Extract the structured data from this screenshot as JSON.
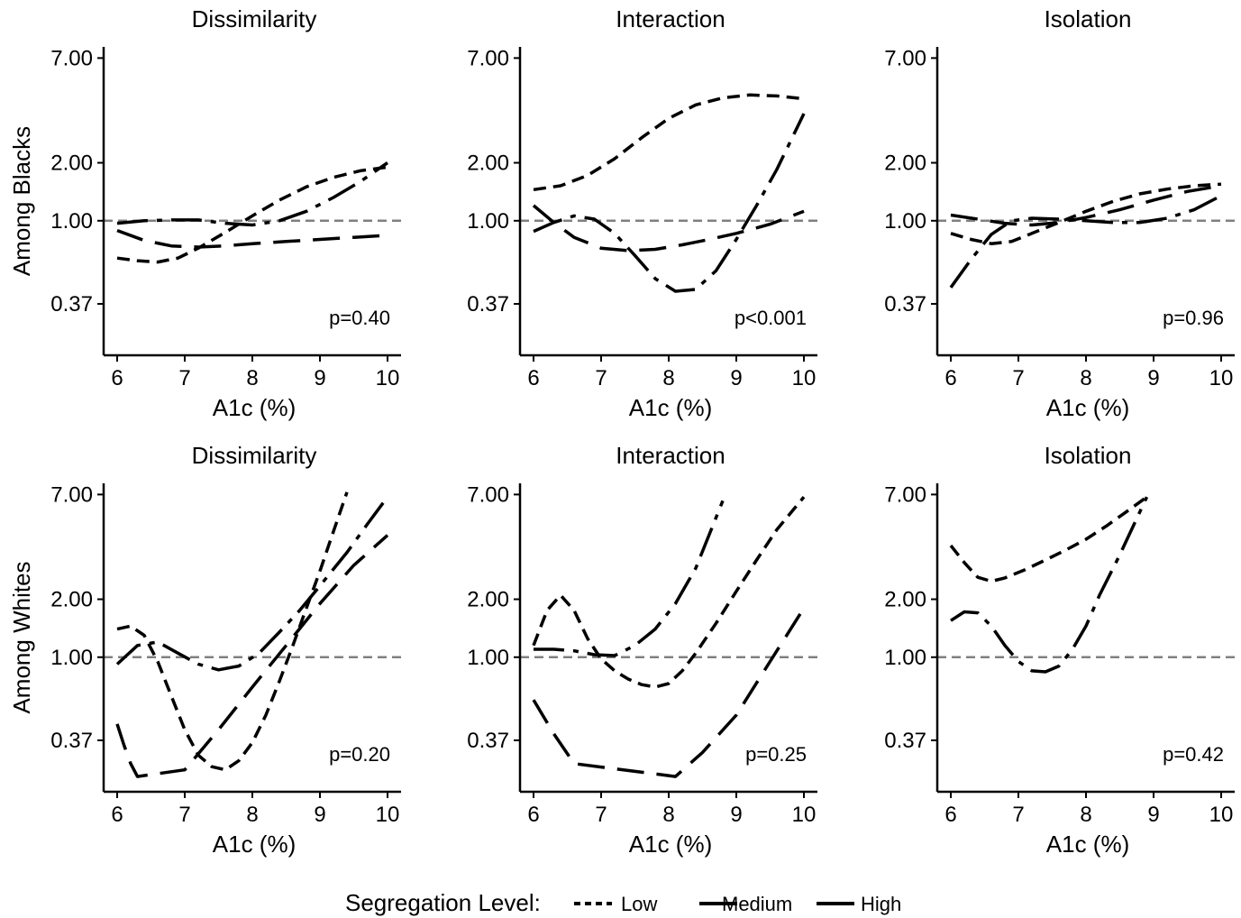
{
  "chart_data": {
    "type": "line",
    "legend": {
      "title": "Segregation Level:",
      "position": "bottom",
      "entries": [
        {
          "name": "Low",
          "dash": "short-dash"
        },
        {
          "name": "Medium",
          "dash": "long-dash"
        },
        {
          "name": "High",
          "dash": "dot-dash"
        }
      ]
    },
    "row_labels": [
      "Among Blacks",
      "Among Whites"
    ],
    "reference_line": {
      "y": 1.0,
      "style": "dashed",
      "color": "#808080"
    },
    "panels": [
      {
        "title": "Dissimilarity",
        "row": 0,
        "col": 0,
        "xlabel": "A1c (%)",
        "ylabel": "Among Blacks",
        "pvalue": "p=0.40",
        "x_ticks": [
          "6",
          "7",
          "8",
          "9",
          "10"
        ],
        "y_ticks": [
          "0.37",
          "1.00",
          "2.00",
          "7.00"
        ],
        "xlim": [
          5.8,
          10.2
        ],
        "ylim": [
          0.2,
          8.0
        ],
        "y_scale": "log",
        "series": [
          {
            "name": "Low",
            "x": [
              6.0,
              6.3,
              6.6,
              6.9,
              7.2,
              7.6,
              8.0,
              8.4,
              8.8,
              9.2,
              9.6,
              10.0
            ],
            "y": [
              0.64,
              0.62,
              0.61,
              0.64,
              0.72,
              0.87,
              1.06,
              1.28,
              1.5,
              1.68,
              1.82,
              1.9
            ]
          },
          {
            "name": "Medium",
            "x": [
              6.0,
              6.4,
              6.8,
              7.2,
              7.6,
              8.0,
              8.5,
              9.0,
              9.5,
              10.0
            ],
            "y": [
              0.89,
              0.79,
              0.74,
              0.73,
              0.74,
              0.76,
              0.78,
              0.8,
              0.82,
              0.84
            ]
          },
          {
            "name": "High",
            "x": [
              6.0,
              6.4,
              6.8,
              7.2,
              7.6,
              8.0,
              8.4,
              8.8,
              9.2,
              9.6,
              10.0
            ],
            "y": [
              0.97,
              1.0,
              1.01,
              1.01,
              0.97,
              0.95,
              1.0,
              1.12,
              1.32,
              1.6,
              2.0
            ]
          }
        ]
      },
      {
        "title": "Interaction",
        "row": 0,
        "col": 1,
        "xlabel": "A1c (%)",
        "ylabel": "",
        "pvalue": "p<0.001",
        "x_ticks": [
          "6",
          "7",
          "8",
          "9",
          "10"
        ],
        "y_ticks": [
          "0.37",
          "1.00",
          "2.00",
          "7.00"
        ],
        "xlim": [
          5.8,
          10.2
        ],
        "ylim": [
          0.2,
          8.0
        ],
        "y_scale": "log",
        "series": [
          {
            "name": "Low",
            "x": [
              6.0,
              6.4,
              6.8,
              7.2,
              7.6,
              8.0,
              8.4,
              8.8,
              9.2,
              9.6,
              10.0
            ],
            "y": [
              1.45,
              1.52,
              1.72,
              2.1,
              2.7,
              3.4,
              4.0,
              4.35,
              4.5,
              4.45,
              4.3
            ]
          },
          {
            "name": "Medium",
            "x": [
              6.0,
              6.3,
              6.6,
              7.0,
              7.4,
              7.8,
              8.2,
              8.6,
              9.0,
              9.5,
              10.0
            ],
            "y": [
              1.2,
              0.98,
              0.82,
              0.72,
              0.7,
              0.71,
              0.75,
              0.8,
              0.86,
              0.96,
              1.12
            ]
          },
          {
            "name": "High",
            "x": [
              6.0,
              6.3,
              6.6,
              6.9,
              7.2,
              7.5,
              7.8,
              8.1,
              8.4,
              8.7,
              9.0,
              9.3,
              9.6,
              10.0
            ],
            "y": [
              0.88,
              0.98,
              1.06,
              1.02,
              0.86,
              0.66,
              0.5,
              0.43,
              0.44,
              0.55,
              0.8,
              1.2,
              1.85,
              3.6
            ]
          }
        ]
      },
      {
        "title": "Isolation",
        "row": 0,
        "col": 2,
        "xlabel": "A1c (%)",
        "ylabel": "",
        "pvalue": "p=0.96",
        "x_ticks": [
          "6",
          "7",
          "8",
          "9",
          "10"
        ],
        "y_ticks": [
          "0.37",
          "1.00",
          "2.00",
          "7.00"
        ],
        "xlim": [
          5.8,
          10.2
        ],
        "ylim": [
          0.2,
          8.0
        ],
        "y_scale": "log",
        "series": [
          {
            "name": "Low",
            "x": [
              6.0,
              6.3,
              6.6,
              6.9,
              7.2,
              7.6,
              8.0,
              8.4,
              8.8,
              9.2,
              9.6,
              10.0
            ],
            "y": [
              0.86,
              0.8,
              0.76,
              0.78,
              0.86,
              0.98,
              1.12,
              1.26,
              1.38,
              1.46,
              1.52,
              1.55
            ]
          },
          {
            "name": "Medium",
            "x": [
              6.0,
              6.4,
              6.8,
              7.2,
              7.6,
              8.0,
              8.5,
              9.0,
              9.5,
              10.0
            ],
            "y": [
              1.07,
              1.02,
              0.97,
              0.95,
              0.98,
              1.04,
              1.14,
              1.28,
              1.42,
              1.52
            ]
          },
          {
            "name": "High",
            "x": [
              6.0,
              6.3,
              6.6,
              6.9,
              7.2,
              7.6,
              8.0,
              8.4,
              8.8,
              9.2,
              9.6,
              10.0
            ],
            "y": [
              0.45,
              0.63,
              0.85,
              1.0,
              1.03,
              1.02,
              1.0,
              0.98,
              0.98,
              1.03,
              1.14,
              1.35
            ]
          }
        ]
      },
      {
        "title": "Dissimilarity",
        "row": 1,
        "col": 0,
        "xlabel": "A1c (%)",
        "ylabel": "Among Whites",
        "pvalue": "p=0.20",
        "x_ticks": [
          "6",
          "7",
          "8",
          "9",
          "10"
        ],
        "y_ticks": [
          "0.37",
          "1.00",
          "2.00",
          "7.00"
        ],
        "xlim": [
          5.8,
          10.2
        ],
        "ylim": [
          0.2,
          8.0
        ],
        "y_scale": "log",
        "series": [
          {
            "name": "Low",
            "x": [
              6.0,
              6.2,
              6.4,
              6.6,
              6.8,
              7.0,
              7.2,
              7.4,
              7.6,
              7.8,
              8.0,
              8.2,
              8.4,
              8.6,
              8.8,
              9.0,
              9.2,
              9.4
            ],
            "y": [
              1.4,
              1.45,
              1.3,
              0.95,
              0.63,
              0.42,
              0.31,
              0.27,
              0.26,
              0.29,
              0.36,
              0.5,
              0.75,
              1.15,
              1.8,
              2.8,
              4.5,
              7.2
            ]
          },
          {
            "name": "Medium",
            "x": [
              6.0,
              6.1,
              6.2,
              6.3,
              7.0,
              7.5,
              8.0,
              8.5,
              9.0,
              9.5,
              10.0
            ],
            "y": [
              0.45,
              0.35,
              0.28,
              0.24,
              0.26,
              0.42,
              0.7,
              1.15,
              1.9,
              3.0,
              4.3
            ]
          },
          {
            "name": "High",
            "x": [
              6.0,
              6.3,
              6.6,
              6.9,
              7.2,
              7.5,
              7.8,
              8.1,
              8.4,
              8.7,
              9.0,
              9.4,
              9.7,
              10.0
            ],
            "y": [
              0.92,
              1.15,
              1.2,
              1.05,
              0.92,
              0.86,
              0.9,
              1.05,
              1.35,
              1.75,
              2.35,
              3.5,
              4.9,
              6.8
            ]
          }
        ]
      },
      {
        "title": "Interaction",
        "row": 1,
        "col": 1,
        "xlabel": "A1c (%)",
        "ylabel": "",
        "pvalue": "p=0.25",
        "x_ticks": [
          "6",
          "7",
          "8",
          "9",
          "10"
        ],
        "y_ticks": [
          "0.37",
          "1.00",
          "2.00",
          "7.00"
        ],
        "xlim": [
          5.8,
          10.2
        ],
        "ylim": [
          0.2,
          8.0
        ],
        "y_scale": "log",
        "series": [
          {
            "name": "Low",
            "x": [
              6.0,
              6.2,
              6.4,
              6.6,
              6.8,
              7.0,
              7.2,
              7.4,
              7.6,
              7.8,
              8.0,
              8.2,
              8.4,
              8.7,
              9.0,
              9.3,
              9.6,
              10.0
            ],
            "y": [
              1.15,
              1.75,
              2.1,
              1.75,
              1.25,
              0.98,
              0.85,
              0.77,
              0.72,
              0.7,
              0.73,
              0.85,
              1.05,
              1.5,
              2.2,
              3.2,
              4.6,
              6.8
            ]
          },
          {
            "name": "Medium",
            "x": [
              6.0,
              6.3,
              6.6,
              8.1,
              8.5,
              9.0,
              9.5,
              10.0
            ],
            "y": [
              0.6,
              0.4,
              0.28,
              0.24,
              0.32,
              0.5,
              0.95,
              1.8
            ]
          },
          {
            "name": "High",
            "x": [
              6.0,
              6.3,
              6.6,
              6.9,
              7.2,
              7.5,
              7.8,
              8.1,
              8.4,
              8.8
            ],
            "y": [
              1.1,
              1.1,
              1.08,
              1.03,
              1.02,
              1.15,
              1.4,
              1.9,
              2.9,
              6.5
            ]
          }
        ]
      },
      {
        "title": "Isolation",
        "row": 1,
        "col": 2,
        "xlabel": "A1c (%)",
        "ylabel": "",
        "pvalue": "p=0.42",
        "x_ticks": [
          "6",
          "7",
          "8",
          "9",
          "10"
        ],
        "y_ticks": [
          "0.37",
          "1.00",
          "2.00",
          "7.00"
        ],
        "xlim": [
          5.8,
          10.2
        ],
        "ylim": [
          0.2,
          8.0
        ],
        "y_scale": "log",
        "series": [
          {
            "name": "Low",
            "x": [
              6.0,
              6.2,
              6.4,
              6.6,
              6.8,
              7.1,
              7.4,
              7.7,
              8.0,
              8.3,
              8.6,
              8.9
            ],
            "y": [
              3.8,
              3.1,
              2.6,
              2.48,
              2.58,
              2.85,
              3.2,
              3.6,
              4.1,
              4.8,
              5.7,
              6.8
            ]
          },
          {
            "name": "High",
            "x": [
              6.0,
              6.2,
              6.4,
              6.6,
              6.8,
              7.0,
              7.2,
              7.4,
              7.6,
              7.8,
              8.0,
              8.2,
              8.5,
              8.9
            ],
            "y": [
              1.55,
              1.72,
              1.7,
              1.45,
              1.15,
              0.95,
              0.85,
              0.84,
              0.9,
              1.1,
              1.45,
              2.1,
              3.4,
              6.8
            ]
          }
        ]
      }
    ]
  }
}
